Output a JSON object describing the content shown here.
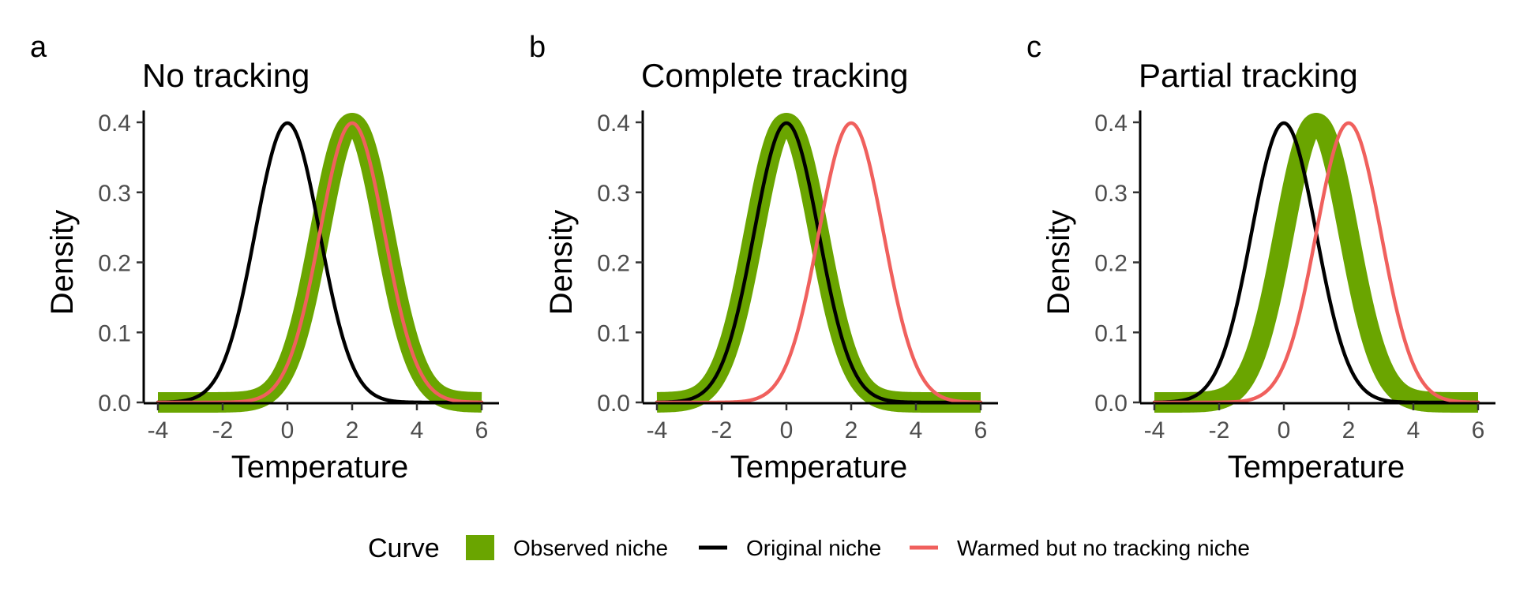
{
  "chart_data": [
    {
      "type": "line",
      "panel": "a",
      "title": "No tracking",
      "xlabel": "Temperature",
      "ylabel": "Density",
      "xlim": [
        -4,
        6
      ],
      "ylim": [
        0,
        0.4
      ],
      "xticks": [
        -4,
        -2,
        0,
        2,
        4,
        6
      ],
      "yticks": [
        0.0,
        0.1,
        0.2,
        0.3,
        0.4
      ],
      "xtick_labels": [
        "-4",
        "-2",
        "0",
        "2",
        "4",
        "6"
      ],
      "ytick_labels": [
        "0.0",
        "0.1",
        "0.2",
        "0.3",
        "0.4"
      ],
      "grid": false,
      "series": [
        {
          "name": "Observed niche",
          "distribution": "normal",
          "mean": 2,
          "sd": 1,
          "color": "#6aa500",
          "style": "thick band"
        },
        {
          "name": "Original niche",
          "distribution": "normal",
          "mean": 0,
          "sd": 1,
          "color": "#000000",
          "style": "line"
        },
        {
          "name": "Warmed but no tracking niche",
          "distribution": "normal",
          "mean": 2,
          "sd": 1,
          "color": "#f0605d",
          "style": "line"
        }
      ]
    },
    {
      "type": "line",
      "panel": "b",
      "title": "Complete tracking",
      "xlabel": "Temperature",
      "ylabel": "Density",
      "xlim": [
        -4,
        6
      ],
      "ylim": [
        0,
        0.4
      ],
      "xticks": [
        -4,
        -2,
        0,
        2,
        4,
        6
      ],
      "yticks": [
        0.0,
        0.1,
        0.2,
        0.3,
        0.4
      ],
      "xtick_labels": [
        "-4",
        "-2",
        "0",
        "2",
        "4",
        "6"
      ],
      "ytick_labels": [
        "0.0",
        "0.1",
        "0.2",
        "0.3",
        "0.4"
      ],
      "grid": false,
      "series": [
        {
          "name": "Observed niche",
          "distribution": "normal",
          "mean": 0,
          "sd": 1,
          "color": "#6aa500",
          "style": "thick band"
        },
        {
          "name": "Original niche",
          "distribution": "normal",
          "mean": 0,
          "sd": 1,
          "color": "#000000",
          "style": "line"
        },
        {
          "name": "Warmed but no tracking niche",
          "distribution": "normal",
          "mean": 2,
          "sd": 1,
          "color": "#f0605d",
          "style": "line"
        }
      ]
    },
    {
      "type": "line",
      "panel": "c",
      "title": "Partial tracking",
      "xlabel": "Temperature",
      "ylabel": "Density",
      "xlim": [
        -4,
        6
      ],
      "ylim": [
        0,
        0.4
      ],
      "xticks": [
        -4,
        -2,
        0,
        2,
        4,
        6
      ],
      "yticks": [
        0.0,
        0.1,
        0.2,
        0.3,
        0.4
      ],
      "xtick_labels": [
        "-4",
        "-2",
        "0",
        "2",
        "4",
        "6"
      ],
      "ytick_labels": [
        "0.0",
        "0.1",
        "0.2",
        "0.3",
        "0.4"
      ],
      "grid": false,
      "series": [
        {
          "name": "Observed niche",
          "distribution": "normal",
          "mean": 1,
          "sd": 1,
          "color": "#6aa500",
          "style": "thick band"
        },
        {
          "name": "Original niche",
          "distribution": "normal",
          "mean": 0,
          "sd": 1,
          "color": "#000000",
          "style": "line"
        },
        {
          "name": "Warmed but no tracking niche",
          "distribution": "normal",
          "mean": 2,
          "sd": 1,
          "color": "#f0605d",
          "style": "line"
        }
      ]
    }
  ],
  "legend": {
    "title": "Curve",
    "placement": "bottom",
    "items": [
      {
        "label": "Observed niche",
        "color": "#6aa500",
        "key": "box"
      },
      {
        "label": "Original niche",
        "color": "#000000",
        "key": "line"
      },
      {
        "label": "Warmed but no tracking niche",
        "color": "#f0605d",
        "key": "line"
      }
    ]
  }
}
